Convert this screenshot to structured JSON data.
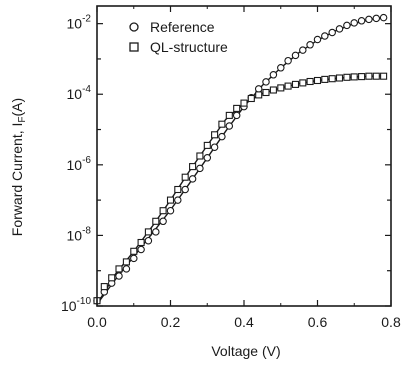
{
  "chart_data": {
    "type": "scatter",
    "title": "",
    "xlabel": "Voltage (V)",
    "ylabel": {
      "main": "Forward Current, I",
      "sub": "F",
      "suffix": "(A)"
    },
    "xlim": [
      0.0,
      0.8
    ],
    "ylim": [
      -10,
      -1.5
    ],
    "y_scale": "log",
    "grid": false,
    "legend_position": "top-left",
    "x_ticks": [
      {
        "value": 0.0,
        "label": "0.0"
      },
      {
        "value": 0.2,
        "label": "0.2"
      },
      {
        "value": 0.4,
        "label": "0.4"
      },
      {
        "value": 0.6,
        "label": "0.6"
      },
      {
        "value": 0.8,
        "label": "0.8"
      }
    ],
    "y_ticks": [
      {
        "value": -10,
        "base": "10",
        "exp": "-10"
      },
      {
        "value": -8,
        "base": "10",
        "exp": "-8"
      },
      {
        "value": -6,
        "base": "10",
        "exp": "-6"
      },
      {
        "value": -4,
        "base": "10",
        "exp": "-4"
      },
      {
        "value": -2,
        "base": "10",
        "exp": "-2"
      }
    ],
    "series": [
      {
        "name": "Reference",
        "marker": "circle",
        "points": [
          [
            0.0,
            -9.85
          ],
          [
            0.02,
            -9.6
          ],
          [
            0.04,
            -9.35
          ],
          [
            0.06,
            -9.15
          ],
          [
            0.08,
            -8.95
          ],
          [
            0.1,
            -8.65
          ],
          [
            0.12,
            -8.4
          ],
          [
            0.14,
            -8.15
          ],
          [
            0.16,
            -7.9
          ],
          [
            0.18,
            -7.6
          ],
          [
            0.2,
            -7.3
          ],
          [
            0.22,
            -7.0
          ],
          [
            0.24,
            -6.7
          ],
          [
            0.26,
            -6.4
          ],
          [
            0.28,
            -6.1
          ],
          [
            0.3,
            -5.8
          ],
          [
            0.32,
            -5.5
          ],
          [
            0.34,
            -5.2
          ],
          [
            0.36,
            -4.9
          ],
          [
            0.38,
            -4.6
          ],
          [
            0.4,
            -4.35
          ],
          [
            0.42,
            -4.1
          ],
          [
            0.44,
            -3.85
          ],
          [
            0.46,
            -3.65
          ],
          [
            0.48,
            -3.45
          ],
          [
            0.5,
            -3.25
          ],
          [
            0.52,
            -3.05
          ],
          [
            0.54,
            -2.9
          ],
          [
            0.56,
            -2.75
          ],
          [
            0.58,
            -2.6
          ],
          [
            0.6,
            -2.45
          ],
          [
            0.62,
            -2.35
          ],
          [
            0.64,
            -2.25
          ],
          [
            0.66,
            -2.15
          ],
          [
            0.68,
            -2.05
          ],
          [
            0.7,
            -1.98
          ],
          [
            0.72,
            -1.92
          ],
          [
            0.74,
            -1.88
          ],
          [
            0.76,
            -1.85
          ],
          [
            0.78,
            -1.83
          ]
        ]
      },
      {
        "name": "QL-structure",
        "marker": "square",
        "points": [
          [
            0.0,
            -9.85
          ],
          [
            0.02,
            -9.45
          ],
          [
            0.04,
            -9.2
          ],
          [
            0.06,
            -8.95
          ],
          [
            0.08,
            -8.75
          ],
          [
            0.1,
            -8.45
          ],
          [
            0.12,
            -8.2
          ],
          [
            0.14,
            -7.9
          ],
          [
            0.16,
            -7.6
          ],
          [
            0.18,
            -7.3
          ],
          [
            0.2,
            -7.0
          ],
          [
            0.22,
            -6.7
          ],
          [
            0.24,
            -6.35
          ],
          [
            0.26,
            -6.05
          ],
          [
            0.28,
            -5.75
          ],
          [
            0.3,
            -5.45
          ],
          [
            0.32,
            -5.15
          ],
          [
            0.34,
            -4.85
          ],
          [
            0.36,
            -4.6
          ],
          [
            0.38,
            -4.4
          ],
          [
            0.4,
            -4.25
          ],
          [
            0.42,
            -4.12
          ],
          [
            0.44,
            -4.02
          ],
          [
            0.46,
            -3.95
          ],
          [
            0.48,
            -3.88
          ],
          [
            0.5,
            -3.82
          ],
          [
            0.52,
            -3.77
          ],
          [
            0.54,
            -3.72
          ],
          [
            0.56,
            -3.68
          ],
          [
            0.58,
            -3.64
          ],
          [
            0.6,
            -3.61
          ],
          [
            0.62,
            -3.58
          ],
          [
            0.64,
            -3.56
          ],
          [
            0.66,
            -3.54
          ],
          [
            0.68,
            -3.52
          ],
          [
            0.7,
            -3.51
          ],
          [
            0.72,
            -3.5
          ],
          [
            0.74,
            -3.49
          ],
          [
            0.76,
            -3.49
          ],
          [
            0.78,
            -3.49
          ]
        ]
      }
    ],
    "fit_lines": [
      {
        "series": "Reference",
        "points": [
          [
            0.0,
            -9.95
          ],
          [
            0.05,
            -9.25
          ],
          [
            0.1,
            -8.6
          ],
          [
            0.15,
            -7.95
          ],
          [
            0.2,
            -7.28
          ],
          [
            0.25,
            -6.55
          ],
          [
            0.3,
            -5.8
          ],
          [
            0.35,
            -5.05
          ],
          [
            0.4,
            -4.35
          ],
          [
            0.45,
            -3.75
          ],
          [
            0.5,
            -3.25
          ],
          [
            0.55,
            -2.82
          ],
          [
            0.6,
            -2.47
          ],
          [
            0.65,
            -2.2
          ],
          [
            0.7,
            -2.0
          ],
          [
            0.75,
            -1.87
          ],
          [
            0.78,
            -1.82
          ]
        ]
      },
      {
        "series": "QL-structure",
        "points": [
          [
            0.0,
            -9.95
          ],
          [
            0.05,
            -9.1
          ],
          [
            0.1,
            -8.45
          ],
          [
            0.15,
            -7.75
          ],
          [
            0.2,
            -7.0
          ],
          [
            0.25,
            -6.2
          ],
          [
            0.3,
            -5.45
          ],
          [
            0.35,
            -4.72
          ],
          [
            0.4,
            -4.25
          ],
          [
            0.45,
            -3.98
          ],
          [
            0.5,
            -3.82
          ],
          [
            0.55,
            -3.7
          ],
          [
            0.6,
            -3.61
          ],
          [
            0.65,
            -3.55
          ],
          [
            0.7,
            -3.51
          ],
          [
            0.75,
            -3.49
          ],
          [
            0.78,
            -3.48
          ]
        ]
      }
    ]
  }
}
